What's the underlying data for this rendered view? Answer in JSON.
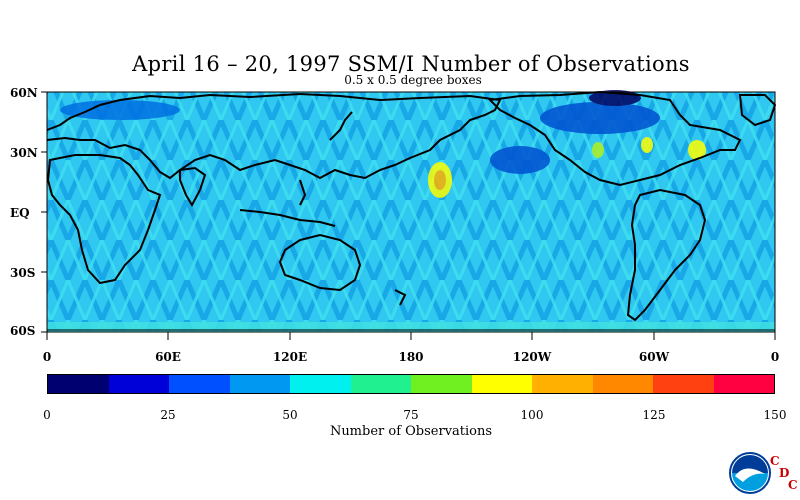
{
  "title": "April 16 – 20, 1997 SSM/I Number of Observations",
  "subtitle": "0.5 x 0.5 degree boxes",
  "lat_labels": [
    "60N",
    "30N",
    "EQ",
    "30S",
    "60S"
  ],
  "lon_labels": [
    "0",
    "60E",
    "120E",
    "180",
    "120W",
    "60W",
    "0"
  ],
  "colorbar": {
    "title": "Number of Observations",
    "tick_labels": [
      "0",
      "25",
      "50",
      "75",
      "100",
      "125",
      "150"
    ],
    "colors": [
      "#000070",
      "#0000d8",
      "#0050ff",
      "#0098f0",
      "#00f0f0",
      "#20f090",
      "#70f020",
      "#ffff00",
      "#ffb000",
      "#ff8800",
      "#ff4010",
      "#ff0040"
    ]
  },
  "logo": {
    "name": "noaa-logo",
    "letters": [
      "C",
      "D",
      "C"
    ]
  },
  "map": {
    "ocean_color": "#30c8f0",
    "land_outline_color": "#000000"
  }
}
